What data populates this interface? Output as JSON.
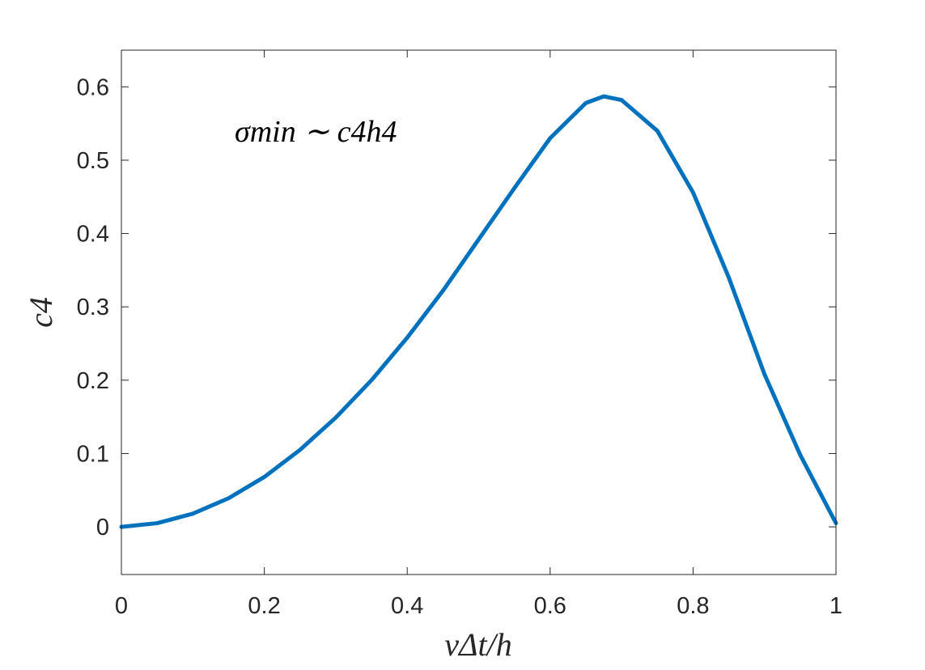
{
  "chart_data": {
    "type": "line",
    "xlabel": "vΔt/h",
    "ylabel": "c4",
    "annotation": "σmin ∼ c4h4",
    "xlim": [
      0,
      1
    ],
    "ylim": [
      -0.065,
      0.65
    ],
    "x_ticks": [
      0,
      0.2,
      0.4,
      0.6,
      0.8,
      1
    ],
    "x_tick_labels": [
      "0",
      "0.2",
      "0.4",
      "0.6",
      "0.8",
      "1"
    ],
    "y_ticks": [
      0,
      0.1,
      0.2,
      0.3,
      0.4,
      0.5,
      0.6
    ],
    "y_tick_labels": [
      "0",
      "0.1",
      "0.2",
      "0.3",
      "0.4",
      "0.5",
      "0.6"
    ],
    "grid": false,
    "box": true,
    "series": [
      {
        "color": "#0072BD",
        "x": [
          0,
          0.05,
          0.1,
          0.15,
          0.2,
          0.25,
          0.3,
          0.35,
          0.4,
          0.45,
          0.5,
          0.55,
          0.6,
          0.65,
          0.675,
          0.7,
          0.75,
          0.8,
          0.85,
          0.9,
          0.95,
          1.0
        ],
        "y": [
          0.0,
          0.005,
          0.018,
          0.039,
          0.068,
          0.105,
          0.149,
          0.2,
          0.258,
          0.322,
          0.392,
          0.462,
          0.53,
          0.578,
          0.587,
          0.582,
          0.54,
          0.456,
          0.34,
          0.208,
          0.098,
          0.005
        ]
      }
    ]
  }
}
